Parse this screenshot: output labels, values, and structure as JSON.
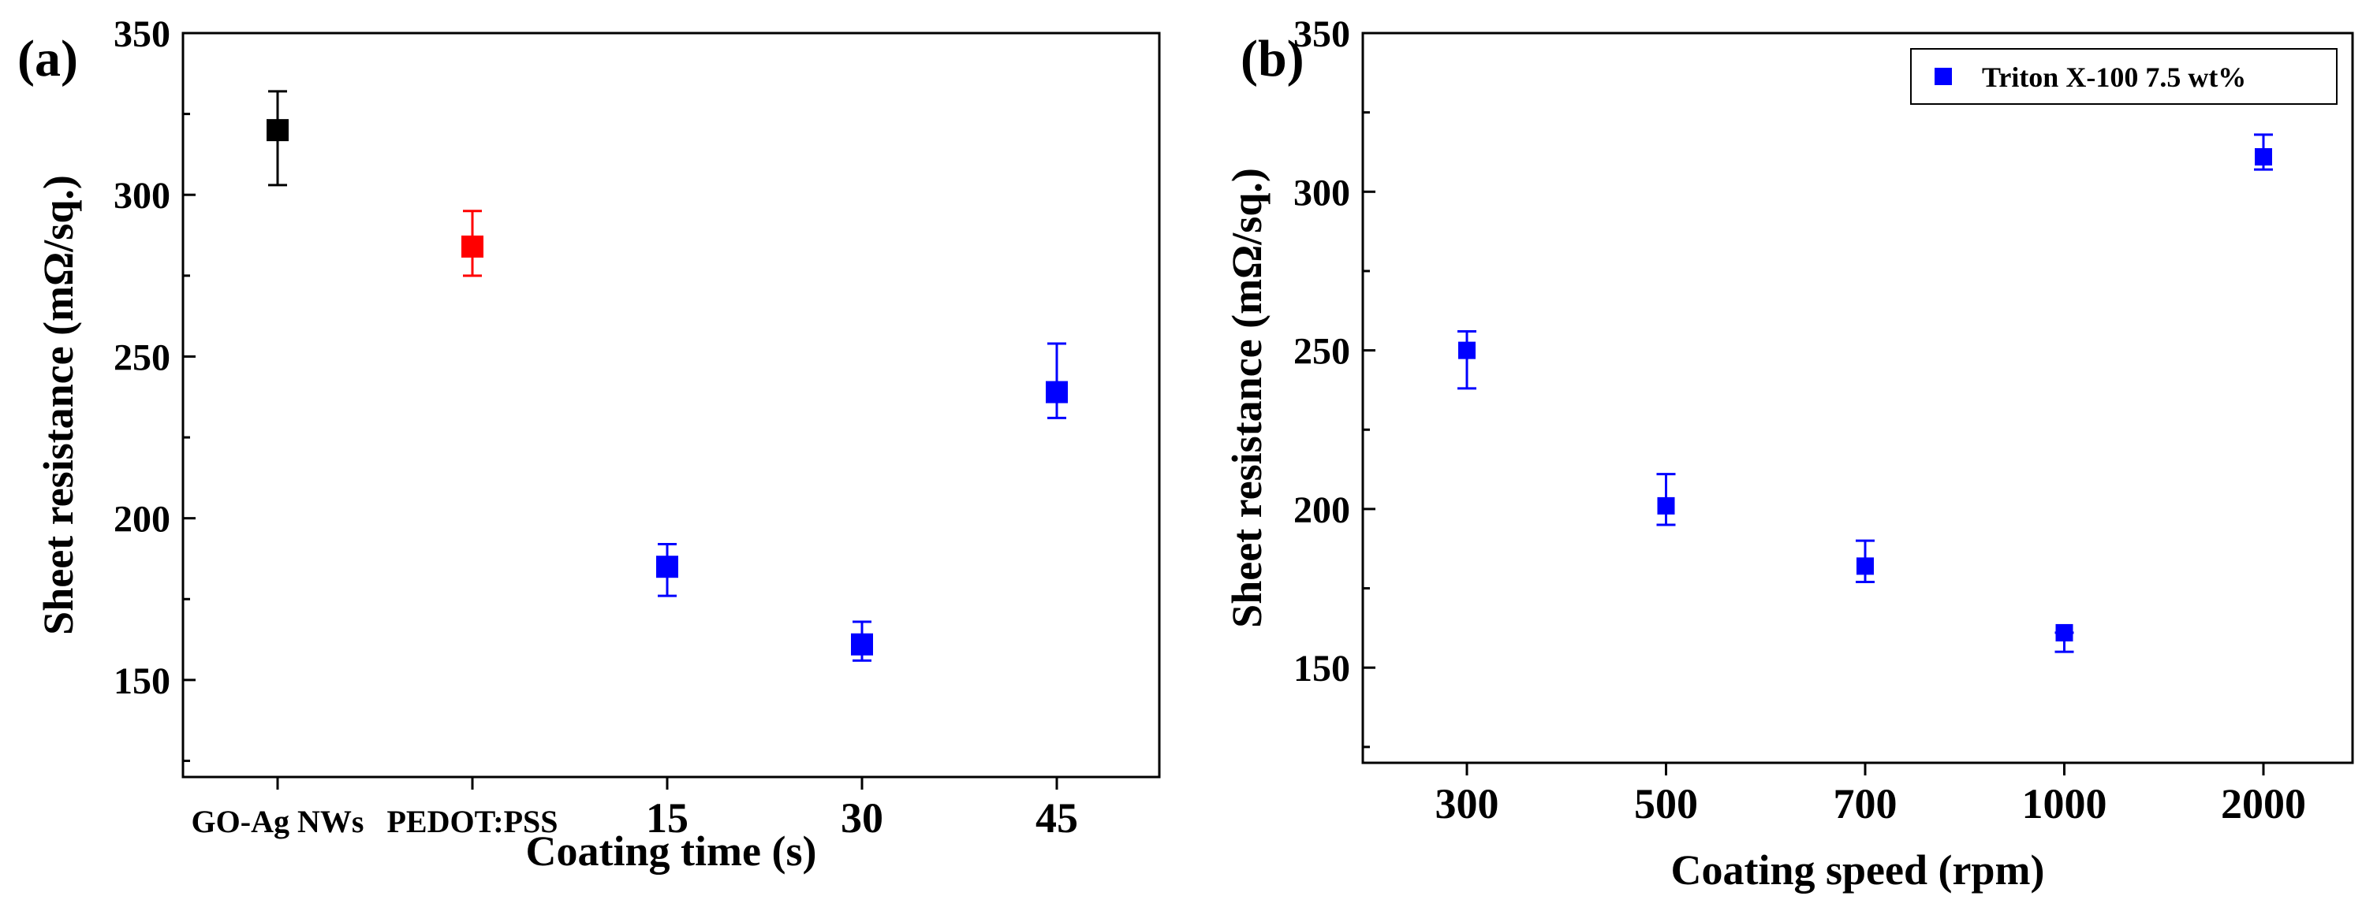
{
  "chart_data": [
    {
      "panel_label": "(a)",
      "type": "scatter",
      "title": "",
      "xlabel": "Coating time (s)",
      "ylabel": "Sheet resistance (mΩ/sq.)",
      "categories": [
        "GO-Ag NWs",
        "PEDOT:PSS",
        "15",
        "30",
        "45"
      ],
      "ylim": [
        120,
        350
      ],
      "yticks": [
        150,
        200,
        250,
        300,
        350
      ],
      "grid": false,
      "series": [
        {
          "color": "#000000",
          "points": [
            {
              "category": "GO-Ag NWs",
              "y": 320,
              "err_low": 303,
              "err_high": 332
            }
          ]
        },
        {
          "color": "#ff0000",
          "points": [
            {
              "category": "PEDOT:PSS",
              "y": 284,
              "err_low": 275,
              "err_high": 295
            }
          ]
        },
        {
          "color": "#0000ff",
          "points": [
            {
              "category": "15",
              "y": 185,
              "err_low": 176,
              "err_high": 192
            },
            {
              "category": "30",
              "y": 161,
              "err_low": 156,
              "err_high": 168
            },
            {
              "category": "45",
              "y": 239,
              "err_low": 231,
              "err_high": 254
            }
          ]
        }
      ]
    },
    {
      "panel_label": "(b)",
      "type": "scatter",
      "title": "",
      "xlabel": "Coating speed (rpm)",
      "ylabel": "Sheet resistance (mΩ/sq.)",
      "categories": [
        "300",
        "500",
        "700",
        "1000",
        "2000"
      ],
      "ylim": [
        120,
        350
      ],
      "yticks": [
        150,
        200,
        250,
        300,
        350
      ],
      "grid": false,
      "legend_position": "top-right",
      "series": [
        {
          "name": "Triton X-100 7.5 wt%",
          "color": "#0000ff",
          "points": [
            {
              "category": "300",
              "y": 250,
              "err_low": 238,
              "err_high": 256
            },
            {
              "category": "500",
              "y": 201,
              "err_low": 195,
              "err_high": 211
            },
            {
              "category": "700",
              "y": 182,
              "err_low": 177,
              "err_high": 190
            },
            {
              "category": "1000",
              "y": 161,
              "err_low": 155,
              "err_high": 161
            },
            {
              "category": "2000",
              "y": 311,
              "err_low": 307,
              "err_high": 318
            }
          ]
        }
      ]
    }
  ]
}
